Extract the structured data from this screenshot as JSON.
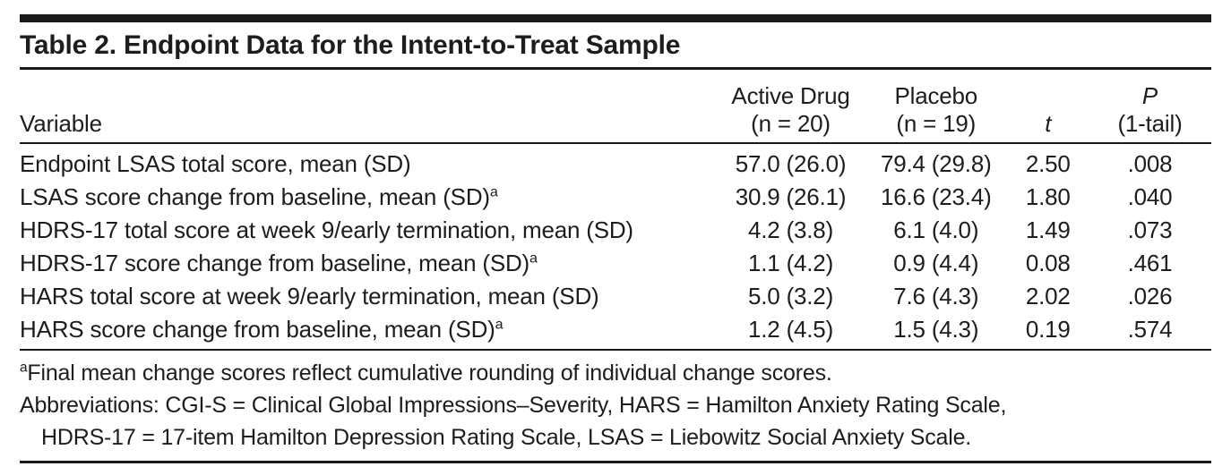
{
  "page": {
    "background_color": "#ffffff",
    "text_color": "#1d1d1b",
    "rule_color": "#1a1a1a"
  },
  "table": {
    "title": "Table 2. Endpoint Data for the Intent-to-Treat Sample",
    "header": {
      "variable": "Variable",
      "active_drug_line1": "Active Drug",
      "active_drug_line2": "(n = 20)",
      "placebo_line1": "Placebo",
      "placebo_line2": "(n = 19)",
      "t_label": "t",
      "p_line1": "P",
      "p_line2": "(1-tail)"
    },
    "rows": [
      {
        "variable": "Endpoint LSAS total score, mean (SD)",
        "sup": "",
        "active_drug": "57.0 (26.0)",
        "placebo": "79.4 (29.8)",
        "t": "2.50",
        "p": ".008"
      },
      {
        "variable": "LSAS score change from baseline, mean (SD)",
        "sup": "a",
        "active_drug": "30.9 (26.1)",
        "placebo": "16.6 (23.4)",
        "t": "1.80",
        "p": ".040"
      },
      {
        "variable": "HDRS-17 total score at week 9/early termination, mean (SD)",
        "sup": "",
        "active_drug": "4.2 (3.8)",
        "placebo": "6.1 (4.0)",
        "t": "1.49",
        "p": ".073"
      },
      {
        "variable": "HDRS-17 score change from baseline, mean (SD)",
        "sup": "a",
        "active_drug": "1.1 (4.2)",
        "placebo": "0.9 (4.4)",
        "t": "0.08",
        "p": ".461"
      },
      {
        "variable": "HARS total score at week 9/early termination, mean (SD)",
        "sup": "",
        "active_drug": "5.0 (3.2)",
        "placebo": "7.6 (4.3)",
        "t": "2.02",
        "p": ".026"
      },
      {
        "variable": "HARS score change from baseline, mean (SD)",
        "sup": "a",
        "active_drug": "1.2 (4.5)",
        "placebo": "1.5 (4.3)",
        "t": "0.19",
        "p": ".574"
      }
    ],
    "footnotes": {
      "note_a_marker": "a",
      "note_a_text": "Final mean change scores reflect cumulative rounding of individual change scores.",
      "abbreviations_line1": "Abbreviations: CGI-S = Clinical Global Impressions–Severity, HARS = Hamilton Anxiety Rating Scale,",
      "abbreviations_line2": "HDRS-17 = 17-item Hamilton Depression Rating Scale, LSAS = Liebowitz Social Anxiety Scale."
    }
  }
}
